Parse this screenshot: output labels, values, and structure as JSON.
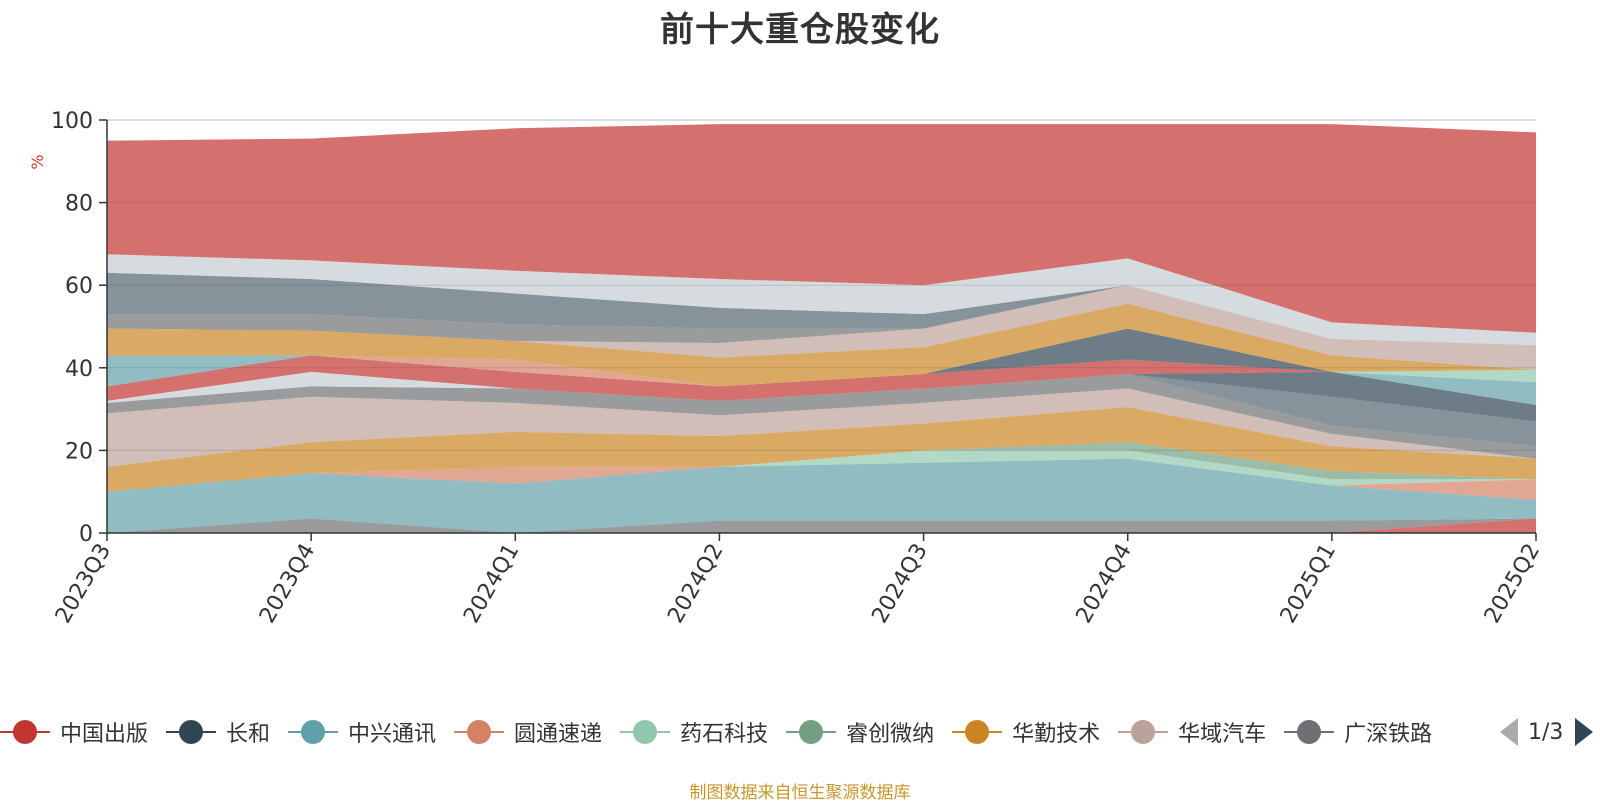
{
  "title": "前十大重仓股变化",
  "source_note": "制图数据来自恒生聚源数据库",
  "legend_page": "1/3",
  "legend": [
    {
      "name": "中国出版",
      "color": "#c23531"
    },
    {
      "name": "长和",
      "color": "#2f4554"
    },
    {
      "name": "中兴通讯",
      "color": "#61a0a8"
    },
    {
      "name": "圆通速递",
      "color": "#d48265"
    },
    {
      "name": "药石科技",
      "color": "#91c7ae"
    },
    {
      "name": "睿创微纳",
      "color": "#749f83"
    },
    {
      "name": "华勤技术",
      "color": "#ca8622"
    },
    {
      "name": "华域汽车",
      "color": "#bda29a"
    },
    {
      "name": "广深铁路",
      "color": "#6e7074"
    }
  ],
  "chart_data": {
    "type": "area",
    "title": "前十大重仓股变化",
    "ylabel": "%",
    "ylim": [
      0,
      100
    ],
    "yticks": [
      0,
      20,
      40,
      60,
      80,
      100
    ],
    "grid": true,
    "legend_position": "bottom",
    "categories": [
      "2023Q3",
      "2023Q4",
      "2024Q1",
      "2024Q2",
      "2024Q3",
      "2024Q4",
      "2025Q1",
      "2025Q2"
    ],
    "layers": [
      {
        "color": "#c23531",
        "lower": [
          0,
          0,
          0,
          0,
          0,
          0,
          0,
          0
        ],
        "upper": [
          0,
          0,
          0,
          0,
          0,
          0,
          0,
          3.5
        ]
      },
      {
        "color": "#6e7074",
        "lower": [
          0,
          0,
          0,
          0,
          0,
          0,
          0,
          3.5
        ],
        "upper": [
          0,
          3.5,
          0,
          3,
          3,
          3,
          3,
          3.5
        ]
      },
      {
        "color": "#61a0a8",
        "lower": [
          0,
          3.5,
          0,
          3,
          3,
          3,
          3,
          3.5
        ],
        "upper": [
          10,
          14.5,
          12,
          16,
          17,
          18,
          11.5,
          8
        ]
      },
      {
        "color": "#d48265",
        "lower": [
          10,
          14.5,
          12,
          16,
          17,
          18,
          11.5,
          8
        ],
        "upper": [
          10,
          14.5,
          16,
          16,
          17,
          18,
          11.5,
          13
        ]
      },
      {
        "color": "#91c7ae",
        "lower": [
          10,
          14.5,
          16,
          16,
          17,
          18,
          11.5,
          13
        ],
        "upper": [
          10,
          14.5,
          16,
          16,
          20,
          20,
          13,
          13
        ]
      },
      {
        "color": "#749f83",
        "lower": [
          10,
          14.5,
          16,
          16,
          20,
          20,
          13,
          13
        ],
        "upper": [
          10,
          14.5,
          16,
          16,
          20,
          22,
          15,
          13
        ]
      },
      {
        "color": "#ca8622",
        "lower": [
          10,
          14.5,
          16,
          16,
          20,
          22,
          15,
          13
        ],
        "upper": [
          16,
          22,
          24.5,
          23.5,
          26.5,
          30.5,
          21,
          18
        ]
      },
      {
        "color": "#bda29a",
        "lower": [
          16,
          22,
          24.5,
          23.5,
          26.5,
          30.5,
          21,
          18
        ],
        "upper": [
          29,
          33,
          31.5,
          28.5,
          31.5,
          35,
          24,
          18
        ]
      },
      {
        "color": "#6e7074",
        "lower": [
          29,
          33,
          31.5,
          28.5,
          31.5,
          35,
          24,
          18
        ],
        "upper": [
          31.5,
          35.5,
          35,
          32,
          35,
          38.5,
          26,
          21
        ]
      },
      {
        "color": "#546570",
        "lower": [
          31.5,
          35.5,
          35,
          32,
          35,
          38.5,
          26,
          21
        ],
        "upper": [
          31.5,
          35.5,
          35,
          32,
          35,
          38.5,
          33,
          27
        ]
      },
      {
        "color": "#2f4554",
        "lower": [
          31.5,
          35.5,
          35,
          32,
          35,
          38.5,
          33,
          27
        ],
        "upper": [
          31.5,
          35.5,
          35,
          32,
          35,
          38.5,
          39,
          31
        ]
      },
      {
        "color": "#c4ccd3",
        "lower": [
          31.5,
          35.5,
          35,
          32,
          35,
          38.5,
          39,
          31
        ],
        "upper": [
          32,
          39,
          35,
          32,
          35,
          38.5,
          39,
          31
        ]
      },
      {
        "color": "#c23531",
        "lower": [
          32,
          39,
          35,
          32,
          35,
          38.5,
          39,
          31
        ],
        "upper": [
          35.5,
          43,
          39,
          35.5,
          38.5,
          42,
          39,
          31
        ]
      },
      {
        "color": "#61a0a8",
        "lower": [
          35.5,
          43,
          39,
          35.5,
          38.5,
          42,
          39,
          31
        ],
        "upper": [
          43,
          43,
          39,
          35.5,
          38.5,
          42,
          39,
          36.5
        ]
      },
      {
        "color": "#91c7ae",
        "lower": [
          43,
          43,
          39,
          35.5,
          38.5,
          42,
          39,
          36.5
        ],
        "upper": [
          43,
          43,
          39,
          35.5,
          38.5,
          42,
          39,
          39.5
        ]
      },
      {
        "color": "#d48265",
        "lower": [
          43,
          43,
          39,
          35.5,
          38.5,
          42,
          39,
          39.5
        ],
        "upper": [
          43,
          43,
          42,
          35.5,
          38.5,
          42,
          39,
          39.5
        ]
      },
      {
        "color": "#2f4554",
        "lower": [
          43,
          43,
          42,
          35.5,
          38.5,
          42,
          39,
          39.5
        ],
        "upper": [
          43,
          43,
          42,
          35.5,
          38.5,
          49.5,
          39,
          39.5
        ]
      },
      {
        "color": "#ca8622",
        "lower": [
          43,
          43,
          42,
          35.5,
          38.5,
          49.5,
          39,
          39.5
        ],
        "upper": [
          49.5,
          49,
          46.5,
          42.5,
          45,
          55.5,
          43,
          39.5
        ]
      },
      {
        "color": "#bda29a",
        "lower": [
          49.5,
          49,
          46.5,
          42.5,
          45,
          55.5,
          43,
          39.5
        ],
        "upper": [
          49.5,
          49,
          46.5,
          46,
          49.5,
          60,
          47,
          45.5
        ]
      },
      {
        "color": "#6e7074",
        "lower": [
          49.5,
          49,
          46.5,
          46,
          49.5,
          60,
          47,
          45.5
        ],
        "upper": [
          53,
          53,
          50.5,
          49.5,
          49.5,
          60,
          47,
          45.5
        ]
      },
      {
        "color": "#546570",
        "lower": [
          53,
          53,
          50.5,
          49.5,
          49.5,
          60,
          47,
          45.5
        ],
        "upper": [
          63,
          61.5,
          58,
          54.5,
          53,
          60,
          47,
          45.5
        ]
      },
      {
        "color": "#c4ccd3",
        "lower": [
          63,
          61.5,
          58,
          54.5,
          53,
          60,
          47,
          45.5
        ],
        "upper": [
          67.5,
          66,
          63.5,
          61.5,
          60,
          66.5,
          51,
          48.5
        ]
      },
      {
        "color": "#c23531",
        "lower": [
          67.5,
          66,
          63.5,
          61.5,
          60,
          66.5,
          51,
          48.5
        ],
        "upper": [
          95,
          95.5,
          98,
          99,
          99,
          99,
          99,
          97
        ]
      }
    ]
  }
}
